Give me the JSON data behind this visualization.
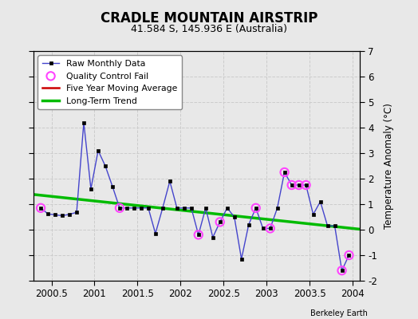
{
  "title": "CRADLE MOUNTAIN AIRSTRIP",
  "subtitle": "41.584 S, 145.936 E (Australia)",
  "ylabel": "Temperature Anomaly (°C)",
  "attribution": "Berkeley Earth",
  "xlim": [
    2000.29,
    2004.08
  ],
  "ylim": [
    -2,
    7
  ],
  "yticks": [
    -2,
    -1,
    0,
    1,
    2,
    3,
    4,
    5,
    6,
    7
  ],
  "xticks": [
    2000.5,
    2001.0,
    2001.5,
    2002.0,
    2002.5,
    2003.0,
    2003.5,
    2004.0
  ],
  "xticklabels": [
    "2000.5",
    "2001",
    "2001.5",
    "2002",
    "2002.5",
    "2003",
    "2003.5",
    "2004"
  ],
  "background_color": "#e8e8e8",
  "plot_bg_color": "#e8e8e8",
  "raw_x": [
    2000.375,
    2000.458,
    2000.542,
    2000.625,
    2000.708,
    2000.792,
    2000.875,
    2000.958,
    2001.042,
    2001.125,
    2001.208,
    2001.292,
    2001.375,
    2001.458,
    2001.542,
    2001.625,
    2001.708,
    2001.792,
    2001.875,
    2001.958,
    2002.042,
    2002.125,
    2002.208,
    2002.292,
    2002.375,
    2002.458,
    2002.542,
    2002.625,
    2002.708,
    2002.792,
    2002.875,
    2002.958,
    2003.042,
    2003.125,
    2003.208,
    2003.292,
    2003.375,
    2003.458,
    2003.542,
    2003.625,
    2003.708,
    2003.792,
    2003.875,
    2003.958
  ],
  "raw_y": [
    0.85,
    0.62,
    0.58,
    0.55,
    0.6,
    0.68,
    4.2,
    1.6,
    3.1,
    2.5,
    1.7,
    0.85,
    0.85,
    0.85,
    0.85,
    0.85,
    -0.15,
    0.85,
    1.9,
    0.85,
    0.85,
    0.85,
    -0.2,
    0.85,
    -0.3,
    0.3,
    0.85,
    0.5,
    -1.15,
    0.2,
    0.85,
    0.05,
    0.05,
    0.85,
    2.25,
    1.75,
    1.75,
    1.75,
    0.6,
    1.1,
    0.15,
    0.15,
    -1.6,
    -1.0
  ],
  "qc_fail_x": [
    2000.375,
    2001.292,
    2002.208,
    2002.458,
    2002.875,
    2003.042,
    2003.208,
    2003.292,
    2003.375,
    2003.458,
    2003.875,
    2003.958
  ],
  "qc_fail_y": [
    0.85,
    0.85,
    -0.2,
    0.3,
    0.85,
    0.05,
    2.25,
    1.75,
    1.75,
    1.75,
    -1.6,
    -1.0
  ],
  "trend_x": [
    2000.29,
    2004.08
  ],
  "trend_y": [
    1.38,
    0.02
  ],
  "raw_line_color": "#4444cc",
  "raw_marker_color": "#000000",
  "qc_color": "#ff44ff",
  "trend_color": "#00bb00",
  "mavg_color": "#cc0000"
}
